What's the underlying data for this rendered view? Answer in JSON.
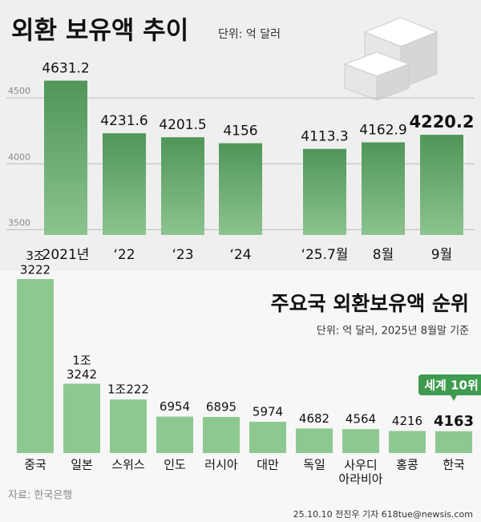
{
  "chart_data": [
    {
      "type": "bar",
      "title": "외환 보유액 추이",
      "subtitle": "단위: 억 달러",
      "categories": [
        "2021년",
        "‘22",
        "‘23",
        "‘24",
        "‘25.7월",
        "8월",
        "9월"
      ],
      "values": [
        4631.2,
        4231.6,
        4201.5,
        4156,
        4113.3,
        4162.9,
        4220.2
      ],
      "ylim": [
        3460,
        5000
      ],
      "yticks": [
        3500,
        4000,
        4500
      ],
      "grid": true,
      "color": "#5fa667"
    },
    {
      "type": "bar",
      "title": "주요국 외환보유액 순위",
      "subtitle": "단위: 억 달러, 2025년 8월말 기준",
      "categories": [
        "중국",
        "일본",
        "스위스",
        "인도",
        "러시아",
        "대만",
        "독일",
        "사우디\n아라비아",
        "홍콩",
        "한국"
      ],
      "values": [
        33222,
        13242,
        10222,
        6954,
        6895,
        5974,
        4682,
        4564,
        4216,
        4163
      ],
      "value_labels": [
        "3조\n3222",
        "1조\n3242",
        "1조222",
        "6954",
        "6895",
        "5974",
        "4682",
        "4564",
        "4216",
        "4163"
      ],
      "annotation": "세계 10위",
      "color": "#8ec891"
    }
  ],
  "footer": {
    "source": "자료: 한국은행",
    "credit": "25.10.10 전진우 기자 618tue@newsis.com"
  }
}
